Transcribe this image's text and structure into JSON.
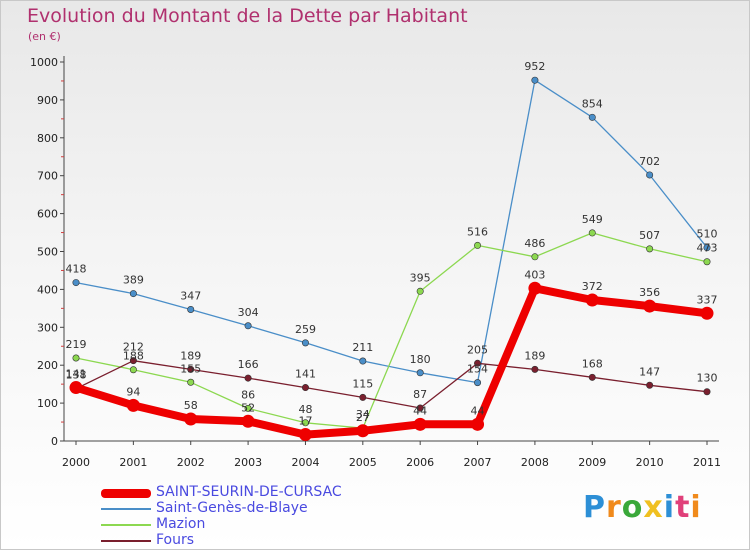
{
  "title": "Evolution du Montant de la Dette par Habitant",
  "subtitle": "(en €)",
  "chart_data": {
    "type": "line",
    "title": "Evolution du Montant de la Dette par Habitant",
    "subtitle": "(en €)",
    "x": [
      "2000",
      "2001",
      "2002",
      "2003",
      "2004",
      "2005",
      "2006",
      "2007",
      "2008",
      "2009",
      "2010",
      "2011"
    ],
    "ylim": [
      0,
      1000
    ],
    "yticks": [
      "0",
      "100",
      "200",
      "300",
      "400",
      "500",
      "600",
      "700",
      "800",
      "900",
      "1000"
    ],
    "grid": false,
    "legend_position": "bottom-left",
    "series": [
      {
        "name": "Saint-Genès-de-Blaye",
        "color": "#4a8ec8",
        "width": 1.3,
        "marker": 3.2,
        "values": [
          418,
          389,
          347,
          304,
          259,
          211,
          180,
          154,
          952,
          854,
          702,
          510
        ],
        "labels": [
          "418",
          "389",
          "347",
          "304",
          "259",
          "211",
          "180",
          "154",
          "952",
          "854",
          "702",
          "510"
        ]
      },
      {
        "name": "Mazion",
        "color": "#8cd850",
        "width": 1.3,
        "marker": 3.2,
        "values": [
          219,
          188,
          155,
          86,
          48,
          34,
          395,
          516,
          486,
          549,
          507,
          473
        ],
        "labels": [
          "219",
          "188",
          "155",
          "86",
          "48",
          "34",
          "395",
          "516",
          "486",
          "549",
          "507",
          "473"
        ]
      },
      {
        "name": "Fours",
        "color": "#7a1f2e",
        "width": 1.3,
        "marker": 3.2,
        "values": [
          138,
          212,
          189,
          166,
          141,
          115,
          87,
          205,
          189,
          168,
          147,
          130
        ],
        "labels": [
          "138",
          "212",
          "189",
          "166",
          "141",
          "115",
          "87",
          "205",
          "189",
          "168",
          "147",
          "130"
        ]
      },
      {
        "name": "SAINT-SEURIN-DE-CURSAC",
        "color": "#ee0000",
        "width": 8,
        "marker": 6.5,
        "values": [
          141,
          94,
          58,
          52,
          17,
          27,
          44,
          44,
          403,
          372,
          356,
          337
        ],
        "labels": [
          "141",
          "94",
          "58",
          "52",
          "17",
          "27",
          "44",
          "44",
          "403",
          "372",
          "356",
          "337"
        ]
      }
    ]
  },
  "legend": [
    {
      "label": "SAINT-SEURIN-DE-CURSAC",
      "color": "#ee0000",
      "thickness": 9
    },
    {
      "label": "Saint-Genès-de-Blaye",
      "color": "#4a8ec8",
      "thickness": 2
    },
    {
      "label": "Mazion",
      "color": "#8cd850",
      "thickness": 2
    },
    {
      "label": "Fours",
      "color": "#7a1f2e",
      "thickness": 2
    }
  ],
  "logo": {
    "letters": [
      "P",
      "r",
      "o",
      "x",
      "i",
      "t",
      "i"
    ],
    "colors": [
      "#2d8fd6",
      "#f08a1c",
      "#3aa83a",
      "#f0c020",
      "#2d8fd6",
      "#e0407a",
      "#f08a1c"
    ]
  }
}
